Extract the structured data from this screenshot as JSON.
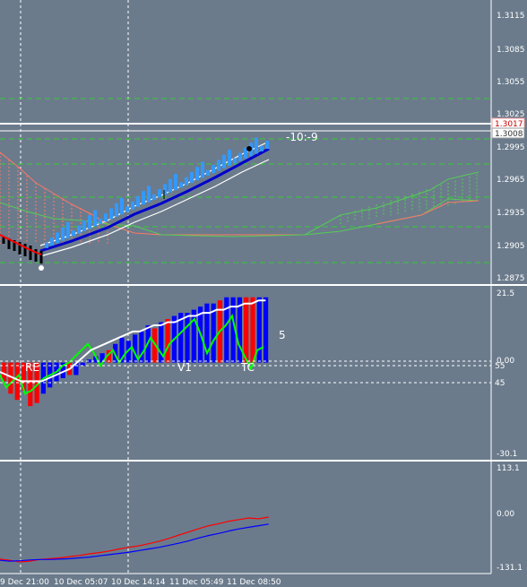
{
  "colors": {
    "background": "#6b7b8c",
    "bull_bar": "#0000ff",
    "bear_bar": "#ff0000",
    "oscillator": "#00ff00",
    "signal": "#ffffff",
    "channel_mid": "#0000cc",
    "candles_up": "#3399ff",
    "cloud_red": "#ff7766",
    "cloud_green": "#55cc55",
    "upper_line": "#ff0000",
    "lower_line": "#0000ff"
  },
  "main_panel": {
    "price_labels": [
      "1.3115",
      "1.3085",
      "1.3055",
      "1.3025",
      "1.2995",
      "1.2965",
      "1.2935",
      "1.2905",
      "1.2875"
    ],
    "price_box_bid": "1.3017",
    "price_box_ask": "1.3008",
    "spread_tag": "-10:-9"
  },
  "osc_panel": {
    "labels": [
      "21.5",
      "0.00",
      "55",
      "45",
      "-30.1"
    ],
    "value_tag": "5",
    "markers": [
      "RE",
      "V1",
      "TC"
    ]
  },
  "bottom_panel": {
    "labels": [
      "113.1",
      "0.00",
      "-131.1"
    ]
  },
  "time_axis": {
    "labels": [
      "9 Dec 21:00",
      "10 Dec 05:07",
      "10 Dec 14:14",
      "11 Dec 05:49",
      "11 Dec 08:50"
    ]
  },
  "chart_data": {
    "type": "bar",
    "title": "",
    "main_price_range": [
      1.2865,
      1.3125
    ],
    "osc_range": [
      -30.1,
      21.5
    ],
    "histogram": {
      "values": [
        -6,
        -10,
        -12,
        -9,
        -14,
        -13,
        -10,
        -8,
        -6,
        -5,
        -4,
        -4,
        -1,
        1,
        2,
        3,
        4,
        6,
        8,
        7,
        9,
        10,
        12,
        11,
        13,
        14,
        15,
        16,
        16,
        17,
        18,
        19,
        19,
        20,
        21,
        21,
        21,
        21,
        21,
        21,
        21
      ],
      "bear_indices": [
        0,
        1,
        2,
        3,
        4,
        5,
        10,
        16,
        23,
        25,
        33,
        37,
        38
      ]
    },
    "oscillator_values": [
      -4,
      -8,
      -6,
      -4,
      -10,
      -9,
      -7,
      -5,
      -4,
      -3,
      -1,
      0,
      2,
      4,
      6,
      3,
      -1,
      2,
      4,
      0,
      3,
      5,
      1,
      4,
      8,
      5,
      2,
      6,
      8,
      10,
      12,
      14,
      9,
      3,
      7,
      10,
      12,
      15,
      6,
      2,
      -2,
      4,
      5
    ],
    "signal_values": [
      -3,
      -4,
      -5,
      -6,
      -6,
      -6,
      -6,
      -5,
      -4,
      -3,
      -2,
      0,
      2,
      4,
      5,
      6,
      7,
      8,
      9,
      10,
      10,
      11,
      12,
      12,
      13,
      13,
      14,
      15,
      15,
      16,
      16,
      17,
      17,
      18,
      18,
      19,
      19,
      20,
      20
    ],
    "bottom_series": [
      {
        "name": "",
        "color": "#ff0000",
        "values": [
          -111,
          -114,
          -118,
          -116,
          -112,
          -110,
          -108,
          -105,
          -102,
          -98,
          -95,
          -91,
          -86,
          -82,
          -78,
          -73,
          -67,
          -60,
          -52,
          -44,
          -36,
          -29,
          -24,
          -18,
          -14,
          -10,
          -12,
          -8
        ]
      },
      {
        "name": "",
        "color": "#0000ff",
        "values": [
          -114,
          -116,
          -115,
          -113,
          -112,
          -112,
          -111,
          -110,
          -108,
          -106,
          -103,
          -100,
          -97,
          -94,
          -90,
          -86,
          -82,
          -77,
          -72,
          -66,
          -59,
          -53,
          -48,
          -42,
          -37,
          -33,
          -29,
          -25
        ]
      }
    ]
  }
}
